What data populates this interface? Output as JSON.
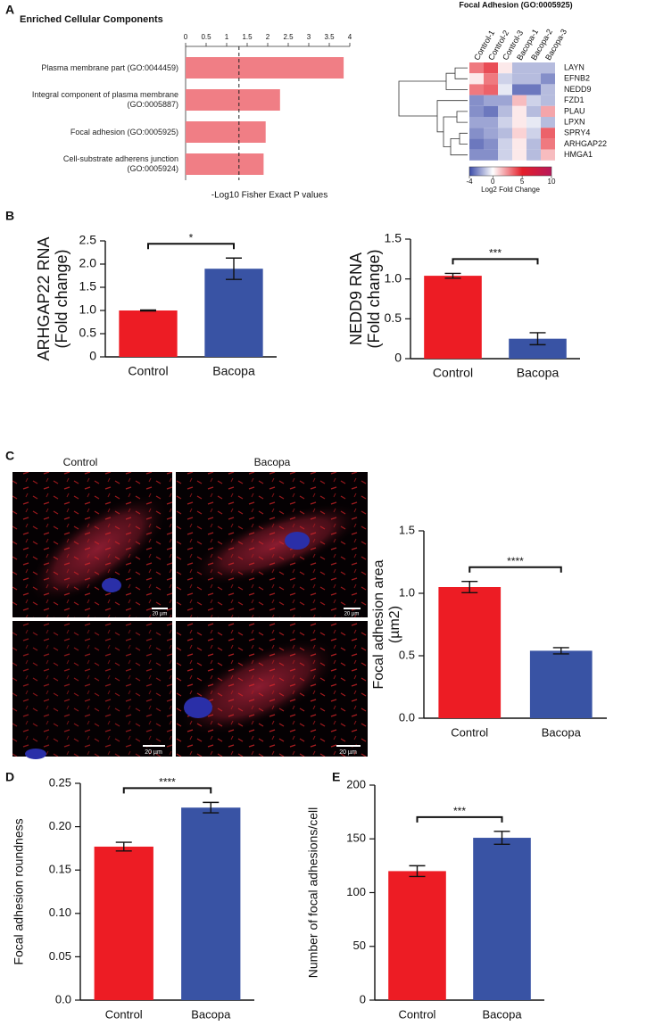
{
  "panels": [
    "A",
    "B",
    "C",
    "D",
    "E"
  ],
  "micrographs": {
    "columns": [
      "Control",
      "Bacopa"
    ],
    "scale_bars": [
      "20 µm",
      "20 µm",
      "20 µm",
      "20 µm"
    ]
  },
  "chart_data": [
    {
      "type": "barh",
      "title": "Enriched Cellular Components",
      "categories": [
        "Plasma membrane part (GO:0044459)",
        "Integral component of plasma membrane (GO:0005887)",
        "Focal adhesion (GO:0005925)",
        "Cell-substrate adherens junction (GO:0005924)"
      ],
      "values": [
        3.85,
        2.3,
        1.95,
        1.9
      ],
      "color": "#f07e85",
      "xlim": [
        0,
        4
      ],
      "xticks": [
        0,
        0.5,
        1,
        1.5,
        2,
        2.5,
        3,
        3.5,
        4
      ],
      "reference_line": 1.3,
      "xlabel": "-Log10 Fisher Exact P values"
    },
    {
      "type": "heatmap",
      "title": "Focal Adhesion (GO:0005925)",
      "columns": [
        "Control-1",
        "Control-2",
        "Control-3",
        "Bacopa-1",
        "Bacopa-2",
        "Bacopa-3"
      ],
      "rows": [
        "LAYN",
        "EFNB2",
        "NEDD9",
        "FZD1",
        "PLAU",
        "LPXN",
        "SPRY4",
        "ARHGAP22",
        "HMGA1"
      ],
      "values": [
        [
          3,
          4,
          0.5,
          -1.5,
          -1.5,
          -1.5
        ],
        [
          0.5,
          3,
          -1,
          -1.5,
          -1.5,
          -2.5
        ],
        [
          3,
          3.5,
          -0.5,
          -3,
          -3,
          -1.5
        ],
        [
          -2.5,
          -2,
          -2,
          1.5,
          -1,
          -1.5
        ],
        [
          -2.5,
          -3,
          -1.5,
          0.5,
          -1.5,
          2
        ],
        [
          -2,
          -2,
          -1,
          0.5,
          -0.5,
          -1.5
        ],
        [
          -2.5,
          -2,
          -1.5,
          1,
          -1,
          3.5
        ],
        [
          -3,
          -2.5,
          -1,
          0.5,
          -1.5,
          3
        ],
        [
          -2.5,
          -2.5,
          -1,
          0.5,
          -1.5,
          1.5
        ]
      ],
      "zlim": [
        -4,
        10
      ],
      "zticks": [
        -4,
        0,
        5,
        10
      ],
      "colors": [
        "#3b4ba8",
        "#ffffff",
        "#e41f2a",
        "#b8185a"
      ],
      "colorbar_label": "Log2 Fold Change"
    },
    {
      "type": "bar",
      "ylabel": [
        "ARHGAP22 RNA",
        "(Fold change)"
      ],
      "categories": [
        "Control",
        "Bacopa"
      ],
      "values": [
        1.0,
        1.9
      ],
      "errors": [
        0.01,
        0.23
      ],
      "colors": [
        "#ed1c24",
        "#3953a4"
      ],
      "ylim": [
        0,
        2.5
      ],
      "yticks": [
        0,
        0.5,
        {
          "value": 1,
          "label": "1.0"
        },
        1.5,
        {
          "value": 2,
          "label": "2.0"
        },
        2.5
      ],
      "significance": "*"
    },
    {
      "type": "bar",
      "ylabel": [
        "NEDD9 RNA",
        "(Fold change)"
      ],
      "categories": [
        "Control",
        "Bacopa"
      ],
      "values": [
        1.04,
        0.25
      ],
      "errors": [
        0.03,
        0.075
      ],
      "colors": [
        "#ed1c24",
        "#3953a4"
      ],
      "ylim": [
        0,
        1.5
      ],
      "yticks": [
        0,
        0.5,
        {
          "value": 1,
          "label": "1.0"
        },
        1.5
      ],
      "significance": "***"
    },
    {
      "type": "bar",
      "ylabel": [
        "Focal adhesion area",
        "(µm2)"
      ],
      "categories": [
        "Control",
        "Bacopa"
      ],
      "values": [
        1.05,
        0.54
      ],
      "errors": [
        0.045,
        0.025
      ],
      "colors": [
        "#ed1c24",
        "#3953a4"
      ],
      "ylim": [
        0,
        1.5
      ],
      "yticks": [
        {
          "value": 0,
          "label": "0.0"
        },
        0.5,
        {
          "value": 1,
          "label": "1.0"
        },
        1.5
      ],
      "significance": "****"
    },
    {
      "type": "bar",
      "ylabel": "Focal adhesion roundness",
      "categories": [
        "Control",
        "Bacopa"
      ],
      "values": [
        0.177,
        0.222
      ],
      "errors": [
        0.005,
        0.006
      ],
      "colors": [
        "#ed1c24",
        "#3953a4"
      ],
      "ylim": [
        0,
        0.25
      ],
      "yticks": [
        {
          "value": 0,
          "label": "0.0"
        },
        0.05,
        {
          "value": 0.1,
          "label": "0.10"
        },
        0.15,
        {
          "value": 0.2,
          "label": "0.20"
        },
        0.25
      ],
      "significance": "****"
    },
    {
      "type": "bar",
      "ylabel": "Number of focal adhesions/cell",
      "categories": [
        "Control",
        "Bacopa"
      ],
      "values": [
        120,
        151
      ],
      "errors": [
        5,
        6
      ],
      "colors": [
        "#ed1c24",
        "#3953a4"
      ],
      "ylim": [
        0,
        200
      ],
      "yticks": [
        0,
        50,
        100,
        150,
        200
      ],
      "significance": "***"
    }
  ]
}
